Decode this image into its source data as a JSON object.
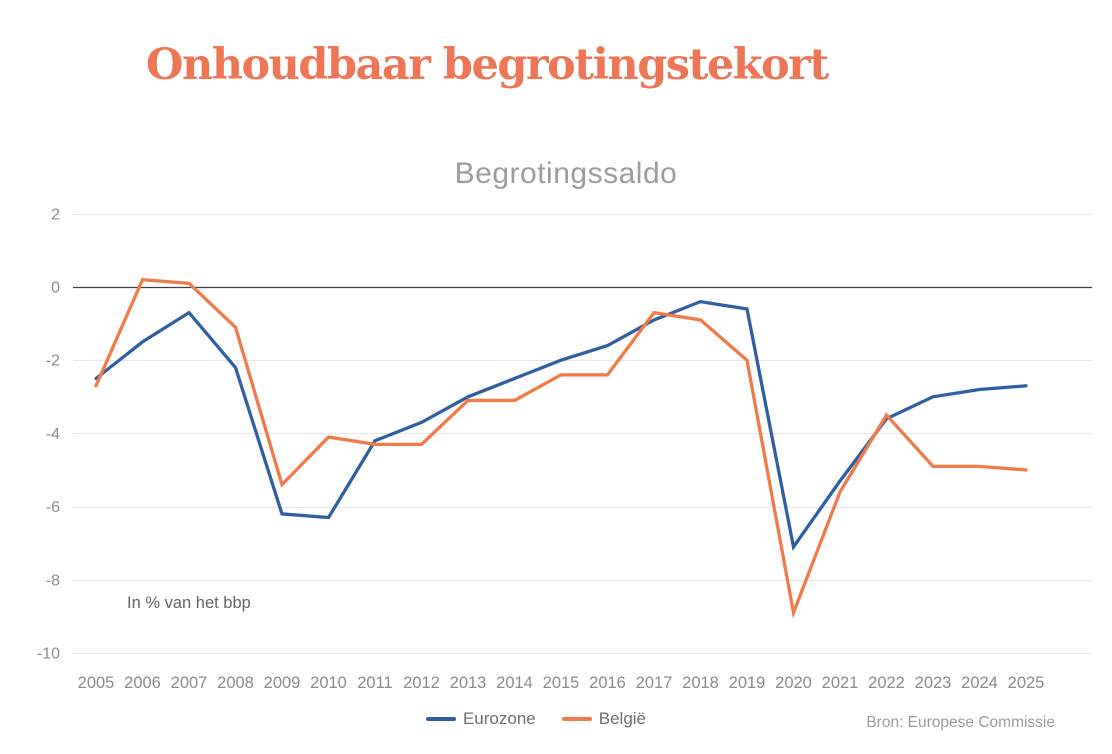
{
  "page": {
    "main_title": "Onhoudbaar begrotingstekort",
    "source": "Bron: Europese Commissie"
  },
  "chart_data": {
    "type": "line",
    "title": "Begrotingssaldo",
    "annotation": "In % van het bbp",
    "xlabel": "",
    "ylabel": "",
    "ylim": [
      -10,
      2
    ],
    "yticks": [
      2,
      0,
      -2,
      -4,
      -6,
      -8,
      -10
    ],
    "grid": "horizontal",
    "zero_line": true,
    "legend_position": "bottom-center",
    "categories": [
      "2005",
      "2006",
      "2007",
      "2008",
      "2009",
      "2010",
      "2011",
      "2012",
      "2013",
      "2014",
      "2015",
      "2016",
      "2017",
      "2018",
      "2019",
      "2020",
      "2021",
      "2022",
      "2023",
      "2024",
      "2025"
    ],
    "series": [
      {
        "name": "Eurozone",
        "color": "#2F5FA2",
        "values": [
          -2.5,
          -1.5,
          -0.7,
          -2.2,
          -6.2,
          -6.3,
          -4.2,
          -3.7,
          -3.0,
          -2.5,
          -2.0,
          -1.6,
          -0.9,
          -0.4,
          -0.6,
          -7.1,
          -5.3,
          -3.6,
          -3.0,
          -2.8,
          -2.7
        ]
      },
      {
        "name": "België",
        "color": "#F07A48",
        "values": [
          -2.7,
          0.2,
          0.1,
          -1.1,
          -5.4,
          -4.1,
          -4.3,
          -4.3,
          -3.1,
          -3.1,
          -2.4,
          -2.4,
          -0.7,
          -0.9,
          -2.0,
          -8.9,
          -5.6,
          -3.5,
          -4.9,
          -4.9,
          -5.0
        ]
      }
    ]
  },
  "colors": {
    "title": "#ED7657",
    "subtitle": "#9C9C9C",
    "axis_text": "#8B8B8B",
    "grid": "#E7E7E7",
    "zero_line": "#3F3F3F",
    "annotation": "#646464",
    "legend_text": "#6F6F6F",
    "source_text": "#9C9C9C"
  }
}
